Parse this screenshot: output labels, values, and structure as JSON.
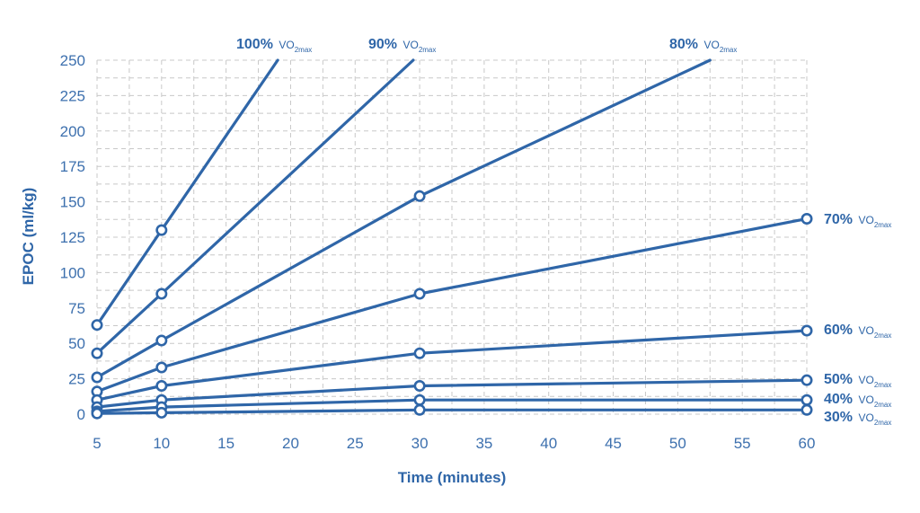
{
  "chart_data": {
    "type": "line",
    "title": "",
    "xlabel": "Time (minutes)",
    "ylabel": "EPOC (ml/kg)",
    "xlim": [
      5,
      60
    ],
    "ylim": [
      0,
      250
    ],
    "xticks": [
      5,
      10,
      15,
      20,
      25,
      30,
      35,
      40,
      45,
      50,
      55,
      60
    ],
    "yticks": [
      0,
      25,
      50,
      75,
      100,
      125,
      150,
      175,
      200,
      225,
      250
    ],
    "grid": true,
    "legend": "inline labels at line ends",
    "unit_label": {
      "base": "VO",
      "sub": "2max"
    },
    "color": "#2f66a8",
    "series": [
      {
        "name": "100%",
        "points": [
          [
            5,
            63
          ],
          [
            10,
            130
          ],
          [
            19,
            250
          ]
        ],
        "markers": [
          [
            5,
            63
          ],
          [
            10,
            130
          ]
        ]
      },
      {
        "name": "90%",
        "points": [
          [
            5,
            43
          ],
          [
            10,
            85
          ],
          [
            29.5,
            250
          ]
        ],
        "markers": [
          [
            5,
            43
          ],
          [
            10,
            85
          ]
        ]
      },
      {
        "name": "80%",
        "points": [
          [
            5,
            26
          ],
          [
            10,
            52
          ],
          [
            30,
            154
          ],
          [
            52.5,
            250
          ]
        ],
        "markers": [
          [
            5,
            26
          ],
          [
            10,
            52
          ],
          [
            30,
            154
          ]
        ]
      },
      {
        "name": "70%",
        "points": [
          [
            5,
            16
          ],
          [
            10,
            33
          ],
          [
            30,
            85
          ],
          [
            60,
            138
          ]
        ],
        "markers": [
          [
            5,
            16
          ],
          [
            10,
            33
          ],
          [
            30,
            85
          ],
          [
            60,
            138
          ]
        ]
      },
      {
        "name": "60%",
        "points": [
          [
            5,
            10
          ],
          [
            10,
            20
          ],
          [
            30,
            43
          ],
          [
            60,
            59
          ]
        ],
        "markers": [
          [
            5,
            10
          ],
          [
            10,
            20
          ],
          [
            30,
            43
          ],
          [
            60,
            59
          ]
        ]
      },
      {
        "name": "50%",
        "points": [
          [
            5,
            5
          ],
          [
            10,
            10
          ],
          [
            30,
            20
          ],
          [
            60,
            24
          ]
        ],
        "markers": [
          [
            5,
            5
          ],
          [
            10,
            10
          ],
          [
            30,
            20
          ],
          [
            60,
            24
          ]
        ]
      },
      {
        "name": "40%",
        "points": [
          [
            5,
            2
          ],
          [
            10,
            5
          ],
          [
            30,
            10
          ],
          [
            60,
            10
          ]
        ],
        "markers": [
          [
            5,
            2
          ],
          [
            10,
            5
          ],
          [
            30,
            10
          ],
          [
            60,
            10
          ]
        ]
      },
      {
        "name": "30%",
        "points": [
          [
            5,
            0.5
          ],
          [
            10,
            1
          ],
          [
            30,
            3
          ],
          [
            60,
            3
          ]
        ],
        "markers": [
          [
            5,
            0.5
          ],
          [
            10,
            1
          ],
          [
            30,
            3
          ],
          [
            60,
            3
          ]
        ]
      }
    ]
  }
}
